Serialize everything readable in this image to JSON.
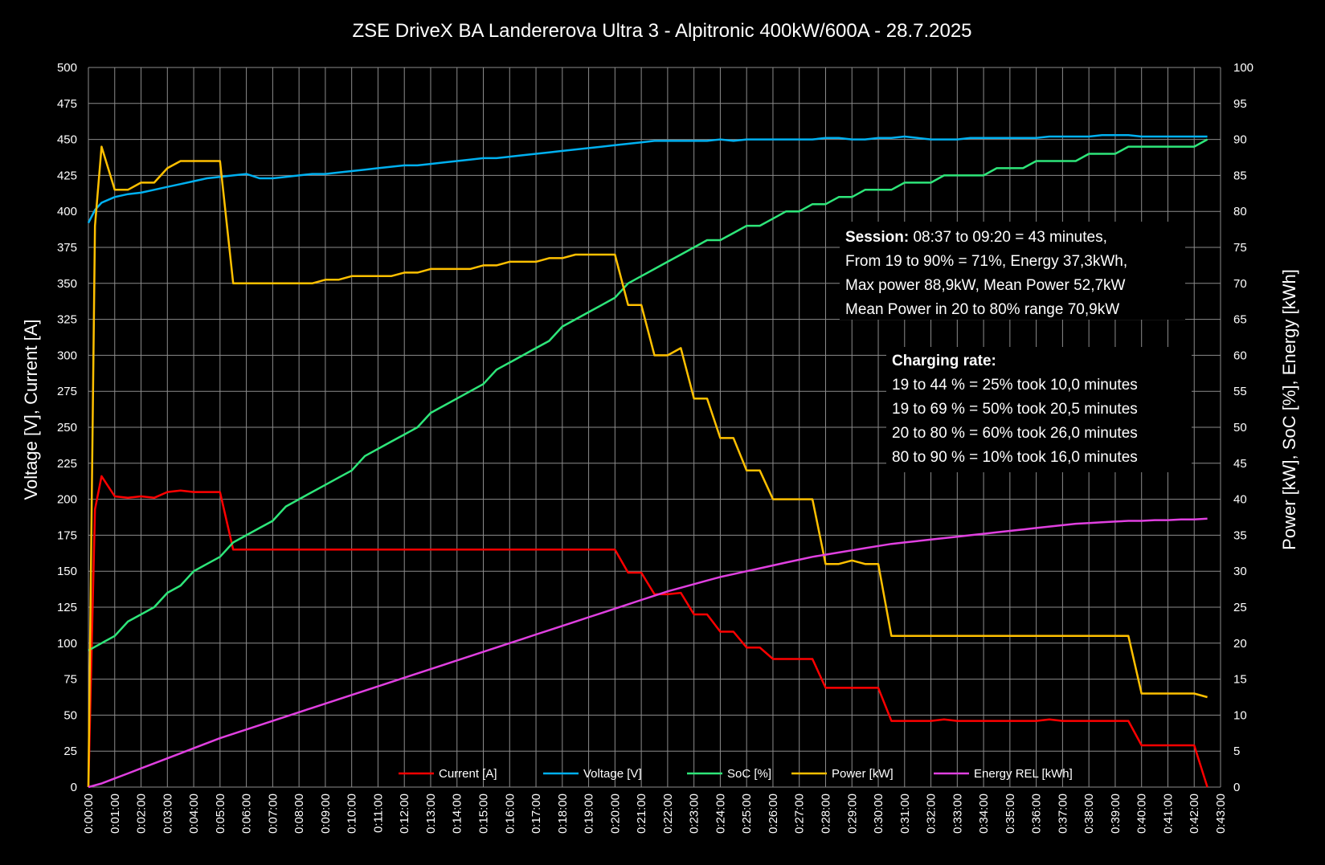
{
  "chart_data": {
    "type": "line",
    "title": "ZSE DriveX BA Landererova Ultra 3 - Alpitronic 400kW/600A - 28.7.2025",
    "ylabel_left": "Voltage [V], Current [A]",
    "ylabel_right": "Power [kW], SoC [%], Energy [kWh]",
    "ylim_left": [
      0,
      500
    ],
    "ylim_right": [
      0,
      100
    ],
    "yticks_left": [
      "0",
      "25",
      "50",
      "75",
      "100",
      "125",
      "150",
      "175",
      "200",
      "225",
      "250",
      "275",
      "300",
      "325",
      "350",
      "375",
      "400",
      "425",
      "450",
      "475",
      "500"
    ],
    "yticks_right": [
      "0",
      "5",
      "10",
      "15",
      "20",
      "25",
      "30",
      "35",
      "40",
      "45",
      "50",
      "55",
      "60",
      "65",
      "70",
      "75",
      "80",
      "85",
      "90",
      "95",
      "100"
    ],
    "xlim_minutes": [
      0,
      43
    ],
    "xticks": [
      "0:00:00",
      "0:01:00",
      "0:02:00",
      "0:03:00",
      "0:04:00",
      "0:05:00",
      "0:06:00",
      "0:07:00",
      "0:08:00",
      "0:09:00",
      "0:10:00",
      "0:11:00",
      "0:12:00",
      "0:13:00",
      "0:14:00",
      "0:15:00",
      "0:16:00",
      "0:17:00",
      "0:18:00",
      "0:19:00",
      "0:20:00",
      "0:21:00",
      "0:22:00",
      "0:23:00",
      "0:24:00",
      "0:25:00",
      "0:26:00",
      "0:27:00",
      "0:28:00",
      "0:29:00",
      "0:30:00",
      "0:31:00",
      "0:32:00",
      "0:33:00",
      "0:34:00",
      "0:35:00",
      "0:36:00",
      "0:37:00",
      "0:38:00",
      "0:39:00",
      "0:40:00",
      "0:41:00",
      "0:42:00",
      "0:43:00"
    ],
    "grid": true,
    "legend_position": "bottom",
    "series": [
      {
        "name": "Current [A]",
        "color": "#ff0000",
        "axis": "left",
        "x": [
          0,
          0.25,
          0.5,
          1,
          1.5,
          2,
          2.5,
          3,
          3.5,
          4,
          4.5,
          5,
          5.5,
          6,
          6.5,
          7,
          7.5,
          8,
          8.5,
          9,
          9.5,
          10,
          10.5,
          11,
          11.5,
          12,
          12.5,
          13,
          13.5,
          14,
          14.5,
          15,
          15.5,
          16,
          16.5,
          17,
          17.5,
          18,
          18.5,
          19,
          19.5,
          20,
          20.5,
          21,
          21.5,
          22,
          22.5,
          23,
          23.5,
          24,
          24.5,
          25,
          25.5,
          26,
          26.5,
          27,
          27.5,
          28,
          28.5,
          29,
          29.5,
          30,
          30.5,
          31,
          31.5,
          32,
          32.5,
          33,
          33.5,
          34,
          34.5,
          35,
          35.5,
          36,
          36.5,
          37,
          37.5,
          38,
          38.5,
          39,
          39.5,
          40,
          40.5,
          41,
          41.5,
          42,
          42.5
        ],
        "y": [
          0,
          193,
          216,
          202,
          201,
          202,
          201,
          205,
          206,
          205,
          205,
          205,
          165,
          165,
          165,
          165,
          165,
          165,
          165,
          165,
          165,
          165,
          165,
          165,
          165,
          165,
          165,
          165,
          165,
          165,
          165,
          165,
          165,
          165,
          165,
          165,
          165,
          165,
          165,
          165,
          165,
          165,
          149,
          149,
          134,
          134,
          135,
          120,
          120,
          108,
          108,
          97,
          97,
          89,
          89,
          89,
          89,
          69,
          69,
          69,
          69,
          69,
          46,
          46,
          46,
          46,
          47,
          46,
          46,
          46,
          46,
          46,
          46,
          46,
          47,
          46,
          46,
          46,
          46,
          46,
          46,
          29,
          29,
          29,
          29,
          29,
          0
        ]
      },
      {
        "name": "Voltage [V]",
        "color": "#00b0f0",
        "axis": "left",
        "x": [
          0,
          0.25,
          0.5,
          1,
          1.5,
          2,
          2.5,
          3,
          3.5,
          4,
          4.5,
          5,
          5.5,
          6,
          6.5,
          7,
          7.5,
          8,
          8.5,
          9,
          9.5,
          10,
          10.5,
          11,
          11.5,
          12,
          12.5,
          13,
          13.5,
          14,
          14.5,
          15,
          15.5,
          16,
          16.5,
          17,
          17.5,
          18,
          18.5,
          19,
          19.5,
          20,
          20.5,
          21,
          21.5,
          22,
          22.5,
          23,
          23.5,
          24,
          24.5,
          25,
          25.5,
          26,
          26.5,
          27,
          27.5,
          28,
          28.5,
          29,
          29.5,
          30,
          30.5,
          31,
          31.5,
          32,
          32.5,
          33,
          33.5,
          34,
          34.5,
          35,
          35.5,
          36,
          36.5,
          37,
          37.5,
          38,
          38.5,
          39,
          39.5,
          40,
          40.5,
          41,
          41.5,
          42,
          42.5
        ],
        "y": [
          392,
          401,
          406,
          410,
          412,
          413,
          415,
          417,
          419,
          421,
          423,
          424,
          425,
          426,
          423,
          423,
          424,
          425,
          426,
          426,
          427,
          428,
          429,
          430,
          431,
          432,
          432,
          433,
          434,
          435,
          436,
          437,
          437,
          438,
          439,
          440,
          441,
          442,
          443,
          444,
          445,
          446,
          447,
          448,
          449,
          449,
          449,
          449,
          449,
          450,
          449,
          450,
          450,
          450,
          450,
          450,
          450,
          451,
          451,
          450,
          450,
          451,
          451,
          452,
          451,
          450,
          450,
          450,
          451,
          451,
          451,
          451,
          451,
          451,
          452,
          452,
          452,
          452,
          453,
          453,
          453,
          452,
          452,
          452,
          452,
          452,
          452
        ]
      },
      {
        "name": "SoC [%]",
        "color": "#2ee67a",
        "axis": "right",
        "x": [
          0,
          0.5,
          1,
          1.5,
          2,
          2.5,
          3,
          3.5,
          4,
          4.5,
          5,
          5.5,
          6,
          6.5,
          7,
          7.5,
          8,
          8.5,
          9,
          9.5,
          10,
          10.5,
          11,
          11.5,
          12,
          12.5,
          13,
          13.5,
          14,
          14.5,
          15,
          15.5,
          16,
          16.5,
          17,
          17.5,
          18,
          18.5,
          19,
          19.5,
          20,
          20.5,
          21,
          21.5,
          22,
          22.5,
          23,
          23.5,
          24,
          24.5,
          25,
          25.5,
          26,
          26.5,
          27,
          27.5,
          28,
          28.5,
          29,
          29.5,
          30,
          30.5,
          31,
          31.5,
          32,
          32.5,
          33,
          33.5,
          34,
          34.5,
          35,
          35.5,
          36,
          36.5,
          37,
          37.5,
          38,
          38.5,
          39,
          39.5,
          40,
          40.5,
          41,
          41.5,
          42,
          42.5
        ],
        "y": [
          19,
          20,
          21,
          23,
          24,
          25,
          27,
          28,
          30,
          31,
          32,
          34,
          35,
          36,
          37,
          39,
          40,
          41,
          42,
          43,
          44,
          46,
          47,
          48,
          49,
          50,
          52,
          53,
          54,
          55,
          56,
          58,
          59,
          60,
          61,
          62,
          64,
          65,
          66,
          67,
          68,
          70,
          71,
          72,
          73,
          74,
          75,
          76,
          76,
          77,
          78,
          78,
          79,
          80,
          80,
          81,
          81,
          82,
          82,
          83,
          83,
          83,
          84,
          84,
          84,
          85,
          85,
          85,
          85,
          86,
          86,
          86,
          87,
          87,
          87,
          87,
          88,
          88,
          88,
          89,
          89,
          89,
          89,
          89,
          89,
          90
        ]
      },
      {
        "name": "Power [kW]",
        "color": "#ffc000",
        "axis": "right",
        "x": [
          0,
          0.25,
          0.5,
          1,
          1.5,
          2,
          2.5,
          3,
          3.5,
          4,
          4.5,
          5,
          5.5,
          6,
          6.5,
          7,
          7.5,
          8,
          8.5,
          9,
          9.5,
          10,
          10.5,
          11,
          11.5,
          12,
          12.5,
          13,
          13.5,
          14,
          14.5,
          15,
          15.5,
          16,
          16.5,
          17,
          17.5,
          18,
          18.5,
          19,
          19.5,
          20,
          20.5,
          21,
          21.5,
          22,
          22.5,
          23,
          23.5,
          24,
          24.5,
          25,
          25.5,
          26,
          26.5,
          27,
          27.5,
          28,
          28.5,
          29,
          29.5,
          30,
          30.5,
          31,
          31.5,
          32,
          32.5,
          33,
          33.5,
          34,
          34.5,
          35,
          35.5,
          36,
          36.5,
          37,
          37.5,
          38,
          38.5,
          39,
          39.5,
          40,
          40.5,
          41,
          41.5,
          42,
          42.5
        ],
        "y": [
          0,
          78,
          89,
          83,
          83,
          84,
          84,
          86,
          87,
          87,
          87,
          87,
          70,
          70,
          70,
          70,
          70,
          70,
          70,
          70.5,
          70.5,
          71,
          71,
          71,
          71,
          71.5,
          71.5,
          72,
          72,
          72,
          72,
          72.5,
          72.5,
          73,
          73,
          73,
          73.5,
          73.5,
          74,
          74,
          74,
          74,
          67,
          67,
          60,
          60,
          61,
          54,
          54,
          48.5,
          48.5,
          44,
          44,
          40,
          40,
          40,
          40,
          31,
          31,
          31.5,
          31,
          31,
          21,
          21,
          21,
          21,
          21,
          21,
          21,
          21,
          21,
          21,
          21,
          21,
          21,
          21,
          21,
          21,
          21,
          21,
          21,
          13,
          13,
          13,
          13,
          13,
          12.5
        ]
      },
      {
        "name": "Energy REL [kWh]",
        "color": "#e040e0",
        "axis": "right",
        "x": [
          0,
          0.5,
          1,
          1.5,
          2,
          2.5,
          3,
          3.5,
          4,
          4.5,
          5,
          5.5,
          6,
          6.5,
          7,
          7.5,
          8,
          8.5,
          9,
          9.5,
          10,
          10.5,
          11,
          11.5,
          12,
          12.5,
          13,
          13.5,
          14,
          14.5,
          15,
          15.5,
          16,
          16.5,
          17,
          17.5,
          18,
          18.5,
          19,
          19.5,
          20,
          20.5,
          21,
          21.5,
          22,
          22.5,
          23,
          23.5,
          24,
          24.5,
          25,
          25.5,
          26,
          26.5,
          27,
          27.5,
          28,
          28.5,
          29,
          29.5,
          30,
          30.5,
          31,
          31.5,
          32,
          32.5,
          33,
          33.5,
          34,
          34.5,
          35,
          35.5,
          36,
          36.5,
          37,
          37.5,
          38,
          38.5,
          39,
          39.5,
          40,
          40.5,
          41,
          41.5,
          42,
          42.5
        ],
        "y": [
          0,
          0.5,
          1.2,
          1.9,
          2.6,
          3.3,
          4.0,
          4.7,
          5.4,
          6.1,
          6.8,
          7.4,
          8.0,
          8.6,
          9.2,
          9.8,
          10.4,
          11.0,
          11.6,
          12.2,
          12.8,
          13.4,
          14.0,
          14.6,
          15.2,
          15.8,
          16.4,
          17.0,
          17.6,
          18.2,
          18.8,
          19.4,
          20.0,
          20.6,
          21.2,
          21.8,
          22.4,
          23.0,
          23.6,
          24.2,
          24.8,
          25.4,
          26.0,
          26.6,
          27.2,
          27.7,
          28.2,
          28.7,
          29.2,
          29.6,
          30.0,
          30.4,
          30.8,
          31.2,
          31.6,
          32.0,
          32.3,
          32.6,
          32.9,
          33.2,
          33.5,
          33.8,
          34.0,
          34.2,
          34.4,
          34.6,
          34.8,
          35.0,
          35.2,
          35.4,
          35.6,
          35.8,
          36.0,
          36.2,
          36.4,
          36.6,
          36.7,
          36.8,
          36.9,
          37.0,
          37.0,
          37.1,
          37.1,
          37.2,
          37.2,
          37.3
        ]
      }
    ],
    "annotations": {
      "session": {
        "heading": "Session:",
        "line1_rest": "  08:37 to 09:20 = 43 minutes,",
        "line2": "From 19 to 90% = 71%, Energy 37,3kWh,",
        "line3": "Max power 88,9kW, Mean Power 52,7kW",
        "line4": "Mean Power in 20 to 80% range 70,9kW"
      },
      "charging_rate": {
        "heading": "Charging rate:",
        "lines": [
          "19 to 44 % = 25% took 10,0 minutes",
          "19 to 69 % = 50% took 20,5 minutes",
          "20 to 80 % = 60% took 26,0 minutes",
          "80 to 90 % = 10% took 16,0 minutes"
        ]
      }
    }
  }
}
